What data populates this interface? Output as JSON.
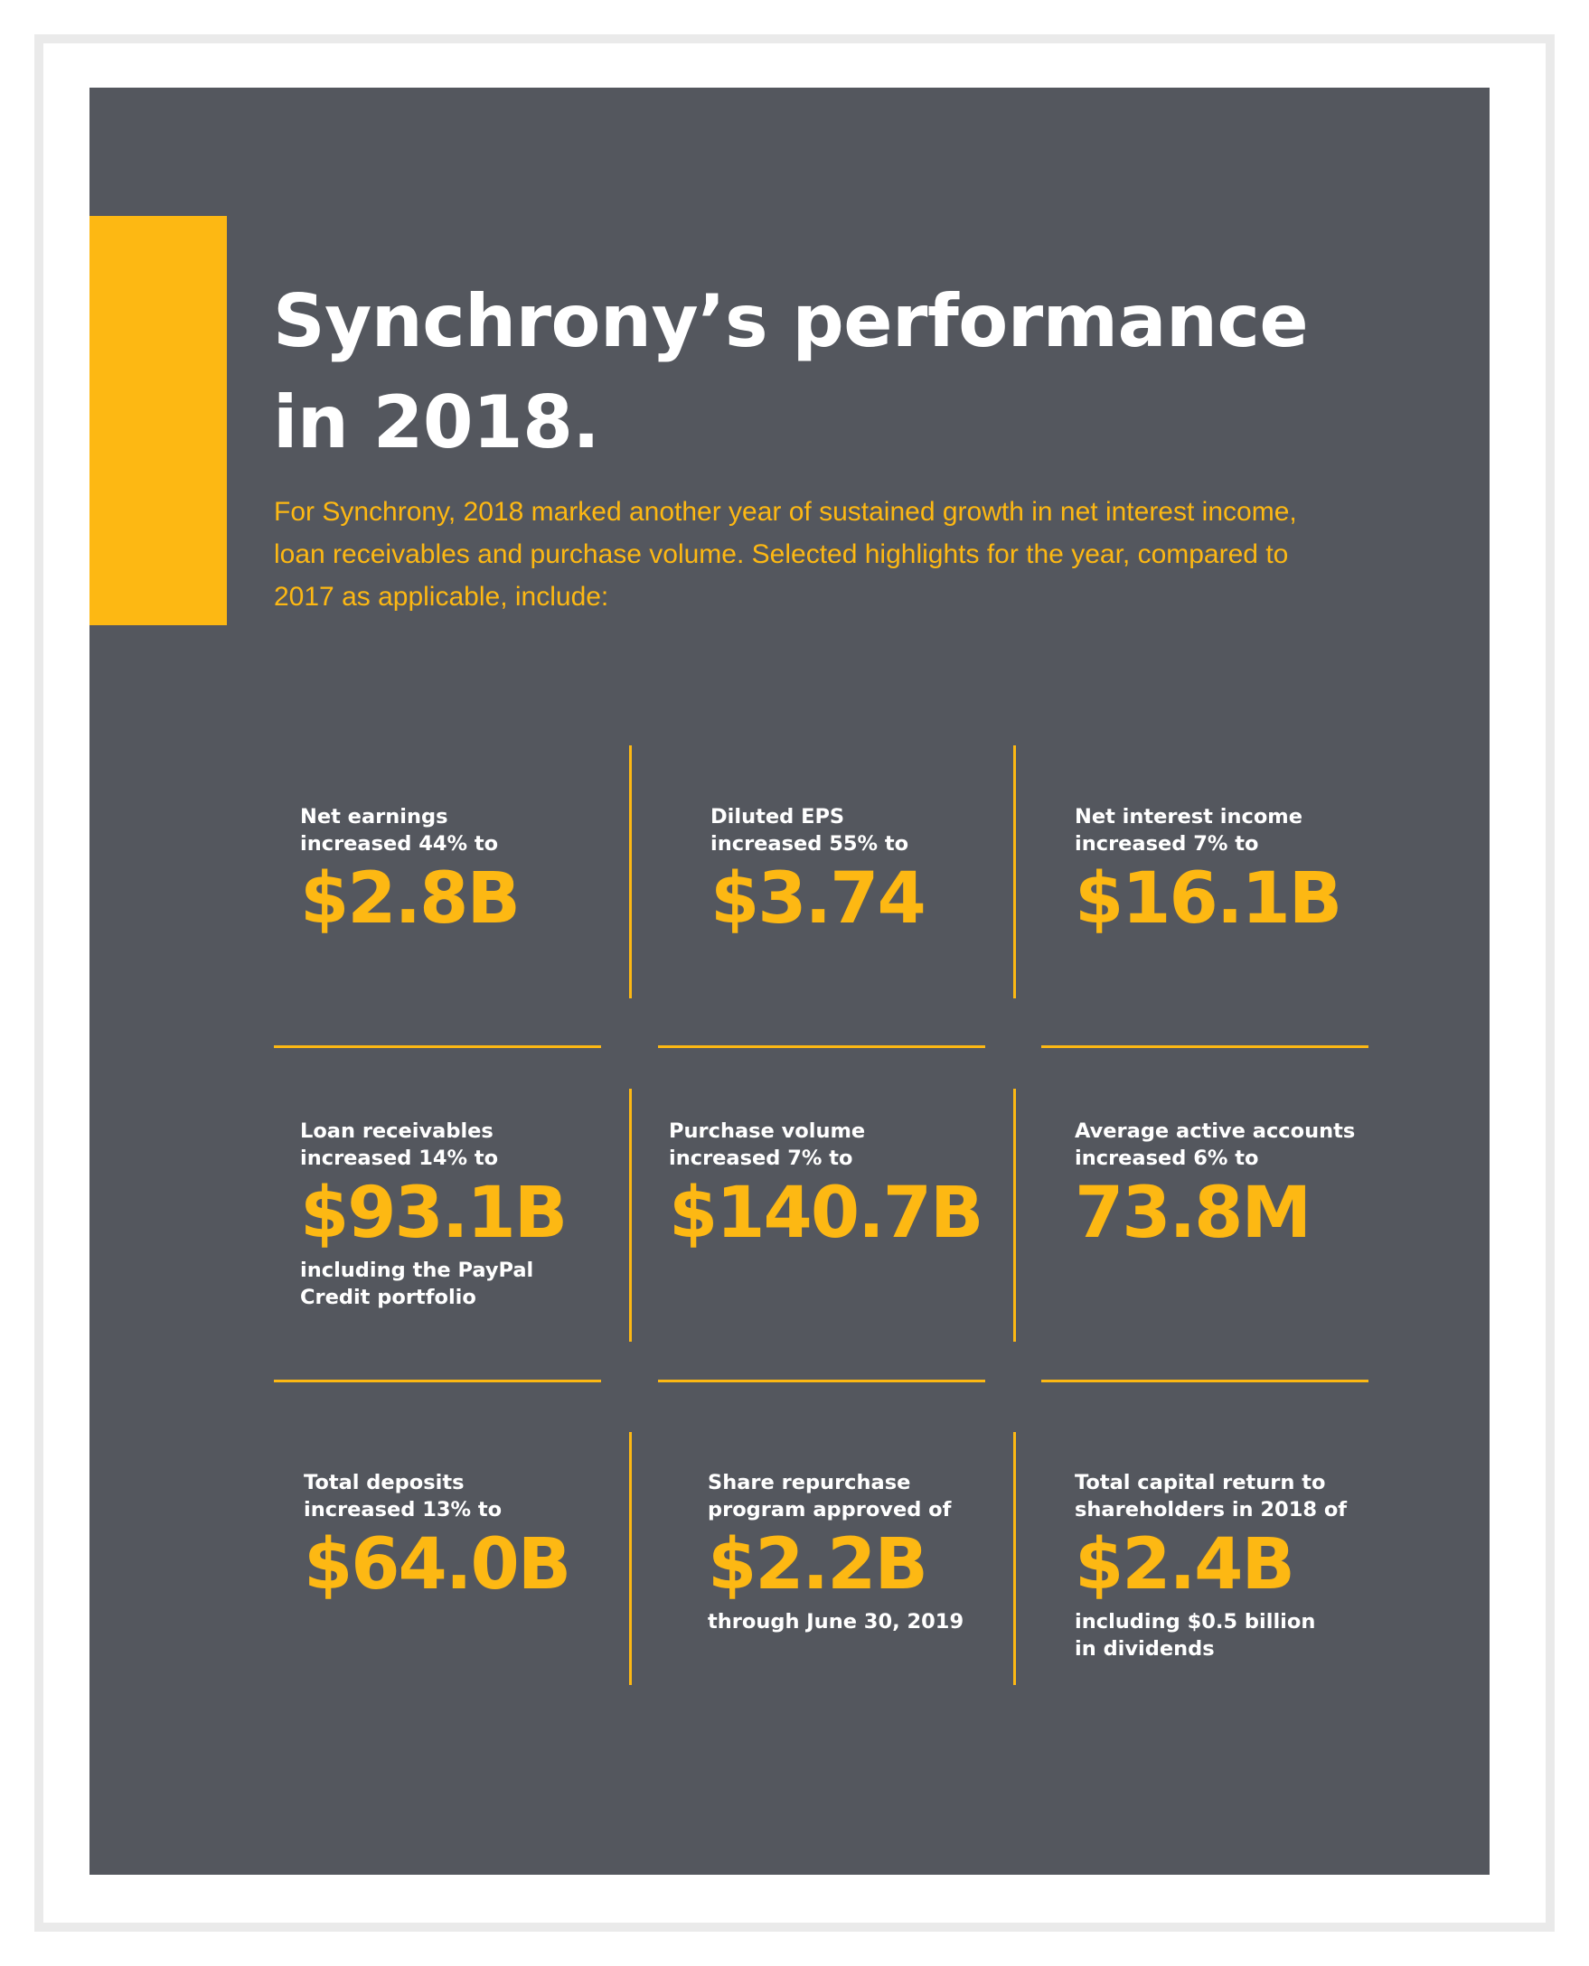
{
  "title": {
    "line1": "Synchrony’s performance",
    "line2": "in 2018."
  },
  "intro": {
    "line1": "For Synchrony, 2018 marked another year of sustained growth in net interest income,",
    "line2": "loan receivables and purchase volume. Selected highlights for the year, compared to",
    "line3": "2017 as applicable, include:"
  },
  "highlights": [
    {
      "label_line1": "Net earnings",
      "label_line2": "increased 44% to",
      "value": "$2.8B",
      "note_line1": "",
      "note_line2": ""
    },
    {
      "label_line1": "Diluted EPS",
      "label_line2": "increased 55% to",
      "value": "$3.74",
      "note_line1": "",
      "note_line2": ""
    },
    {
      "label_line1": "Net interest income",
      "label_line2": "increased 7% to",
      "value": "$16.1B",
      "note_line1": "",
      "note_line2": ""
    },
    {
      "label_line1": "Loan receivables",
      "label_line2": "increased 14% to",
      "value": "$93.1B",
      "note_line1": "including the PayPal",
      "note_line2": "Credit portfolio"
    },
    {
      "label_line1": "Purchase volume",
      "label_line2": "increased 7% to",
      "value": "$140.7B",
      "note_line1": "",
      "note_line2": ""
    },
    {
      "label_line1": "Average active accounts",
      "label_line2": "increased 6% to",
      "value": "73.8M",
      "note_line1": "",
      "note_line2": ""
    },
    {
      "label_line1": "Total deposits",
      "label_line2": "increased 13% to",
      "value": "$64.0B",
      "note_line1": "",
      "note_line2": ""
    },
    {
      "label_line1": "Share repurchase",
      "label_line2": "program approved of",
      "value": "$2.2B",
      "note_line1": "through June 30, 2019",
      "note_line2": ""
    },
    {
      "label_line1": "Total capital return to",
      "label_line2": "shareholders in 2018 of",
      "value": "$2.4B",
      "note_line1": "including $0.5 billion",
      "note_line2": "in dividends"
    }
  ],
  "colors": {
    "panel_background": "#54575e",
    "accent": "#fdb813",
    "text": "#ffffff",
    "frame": "#eaeaea"
  }
}
